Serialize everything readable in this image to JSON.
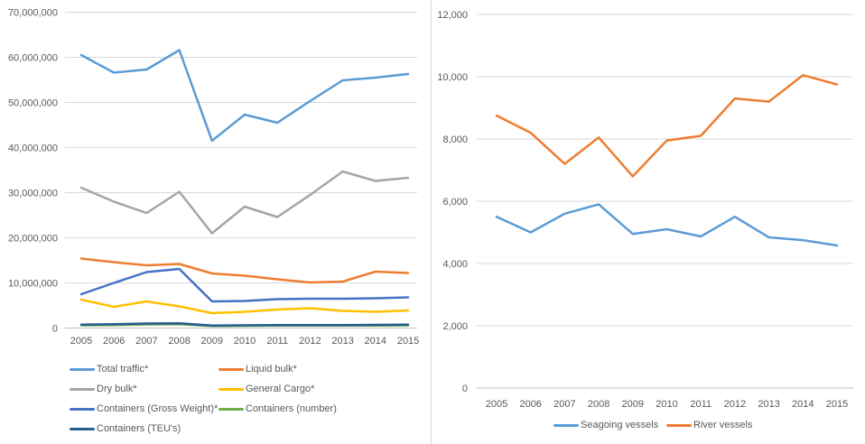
{
  "colors": {
    "grid": "#d9d9d9",
    "axis_zero_line": "#c0c0c0",
    "text": "#595959",
    "divider": "#d9d9d9",
    "background": "#ffffff"
  },
  "chart_data": [
    {
      "id": "cargo-traffic",
      "type": "line",
      "title": "",
      "xlabel": "",
      "ylabel": "",
      "grid": true,
      "legend_position": "bottom-left-two-columns",
      "x": [
        "2005",
        "2006",
        "2007",
        "2008",
        "2009",
        "2010",
        "2011",
        "2012",
        "2013",
        "2014",
        "2015"
      ],
      "ylim": [
        0,
        70000000
      ],
      "ytick_step": 10000000,
      "yticklabels": [
        "0",
        "10,000,000",
        "20,000,000",
        "30,000,000",
        "40,000,000",
        "50,000,000",
        "60,000,000",
        "70,000,000"
      ],
      "series": [
        {
          "name": "Total traffic*",
          "color": "#5B9BD5",
          "values": [
            60500000,
            56600000,
            57300000,
            61600000,
            41500000,
            47300000,
            45500000,
            50300000,
            54900000,
            55500000,
            56300000
          ]
        },
        {
          "name": "Liquid bulk*",
          "color": "#ED7D31",
          "values": [
            15400000,
            14600000,
            13900000,
            14200000,
            12100000,
            11600000,
            10800000,
            10100000,
            10300000,
            12500000,
            12200000
          ]
        },
        {
          "name": "Dry bulk*",
          "color": "#A5A5A5",
          "values": [
            31100000,
            28000000,
            25500000,
            30200000,
            21000000,
            26900000,
            24600000,
            29500000,
            34700000,
            32600000,
            33300000
          ]
        },
        {
          "name": "General Cargo*",
          "color": "#FFC000",
          "values": [
            6300000,
            4700000,
            5900000,
            4800000,
            3300000,
            3600000,
            4100000,
            4400000,
            3800000,
            3600000,
            3900000
          ]
        },
        {
          "name": "Containers (Gross Weight)*",
          "color": "#4472C4",
          "values": [
            7500000,
            10000000,
            12400000,
            13100000,
            5900000,
            6000000,
            6400000,
            6500000,
            6500000,
            6600000,
            6800000
          ]
        },
        {
          "name": "Containers (number)",
          "color": "#70AD47",
          "values": [
            600000,
            650000,
            800000,
            850000,
            450000,
            500000,
            550000,
            550000,
            550000,
            550000,
            600000
          ]
        },
        {
          "name": "Containers (TEU's)",
          "color": "#255E91",
          "values": [
            750000,
            850000,
            1000000,
            1050000,
            550000,
            600000,
            650000,
            650000,
            650000,
            700000,
            750000
          ]
        }
      ]
    },
    {
      "id": "vessels",
      "type": "line",
      "title": "",
      "xlabel": "",
      "ylabel": "",
      "grid": true,
      "legend_position": "bottom-center-row",
      "x": [
        "2005",
        "2006",
        "2007",
        "2008",
        "2009",
        "2010",
        "2011",
        "2012",
        "2013",
        "2014",
        "2015"
      ],
      "ylim": [
        0,
        12000
      ],
      "ytick_step": 2000,
      "yticklabels": [
        "0",
        "2,000",
        "4,000",
        "6,000",
        "8,000",
        "10,000",
        "12,000"
      ],
      "series": [
        {
          "name": "Seagoing vessels",
          "color": "#5B9BD5",
          "values": [
            5500,
            5000,
            5600,
            5900,
            4950,
            5100,
            4870,
            5500,
            4840,
            4750,
            4580
          ]
        },
        {
          "name": "River vessels",
          "color": "#ED7D31",
          "values": [
            8750,
            8200,
            7200,
            8050,
            6800,
            7950,
            8100,
            9300,
            9200,
            10050,
            9750
          ]
        }
      ]
    }
  ]
}
